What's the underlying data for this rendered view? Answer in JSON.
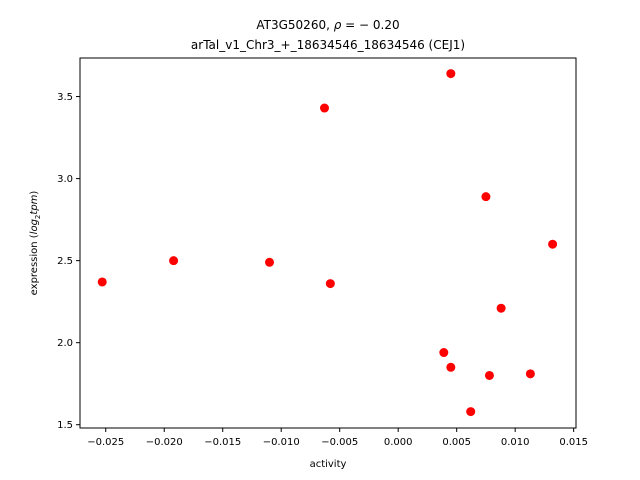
{
  "chart_data": {
    "type": "scatter",
    "title_line1_prefix": "AT3G50260, ",
    "title_line1_symbol": "ρ",
    "title_line1_suffix": " = − 0.20",
    "title_line2": "arTal_v1_Chr3_+_18634546_18634546 (CEJ1)",
    "xlabel": "activity",
    "ylabel_prefix": "expression (",
    "ylabel_log": "log",
    "ylabel_sub": "2",
    "ylabel_tpm": "tpm",
    "ylabel_suffix": ")",
    "xlim": [
      -0.0272,
      0.0152
    ],
    "ylim": [
      1.48,
      3.735
    ],
    "xticks": [
      -0.025,
      -0.02,
      -0.015,
      -0.01,
      -0.005,
      0.0,
      0.005,
      0.01,
      0.015
    ],
    "xtick_labels": [
      "−0.025",
      "−0.020",
      "−0.015",
      "−0.010",
      "−0.005",
      "0.000",
      "0.005",
      "0.010",
      "0.015"
    ],
    "yticks": [
      1.5,
      2.0,
      2.5,
      3.0,
      3.5
    ],
    "ytick_labels": [
      "1.5",
      "2.0",
      "2.5",
      "3.0",
      "3.5"
    ],
    "grid": false,
    "marker_color": "#ff0000",
    "points": [
      {
        "x": -0.0253,
        "y": 2.37
      },
      {
        "x": -0.0192,
        "y": 2.5
      },
      {
        "x": -0.011,
        "y": 2.49
      },
      {
        "x": -0.0063,
        "y": 3.43
      },
      {
        "x": -0.0058,
        "y": 2.36
      },
      {
        "x": 0.0039,
        "y": 1.94
      },
      {
        "x": 0.0045,
        "y": 3.64
      },
      {
        "x": 0.0045,
        "y": 1.85
      },
      {
        "x": 0.0062,
        "y": 1.58
      },
      {
        "x": 0.0075,
        "y": 2.89
      },
      {
        "x": 0.0078,
        "y": 1.8
      },
      {
        "x": 0.0088,
        "y": 2.21
      },
      {
        "x": 0.0113,
        "y": 1.81
      },
      {
        "x": 0.0132,
        "y": 2.6
      }
    ]
  }
}
